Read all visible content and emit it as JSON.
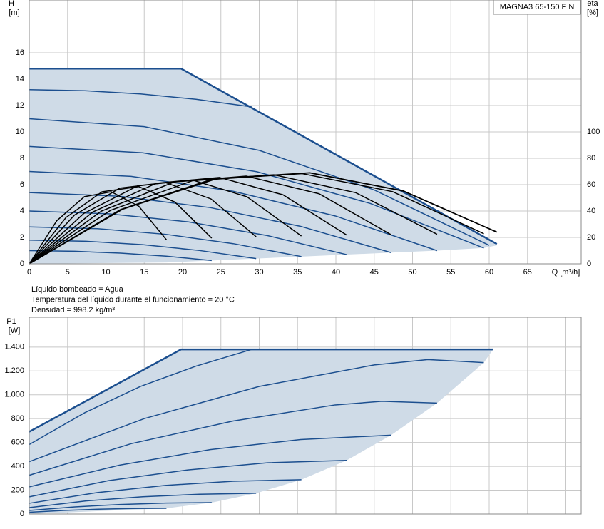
{
  "chart_data": [
    {
      "type": "line",
      "y_label": "H",
      "y_unit": "[m]",
      "y2_label": "eta",
      "y2_unit": "[%]",
      "x_label": "Q [m³/h]",
      "legend_box": "MAGNA3 65-150 F N",
      "xlim": [
        0,
        72
      ],
      "xticks": [
        0,
        5,
        10,
        15,
        20,
        25,
        30,
        35,
        40,
        45,
        50,
        55,
        60,
        65
      ],
      "ylim": [
        0,
        20
      ],
      "yticks": [
        0,
        2,
        4,
        6,
        8,
        10,
        12,
        14,
        16
      ],
      "y2lim": [
        0,
        200
      ],
      "y2ticks": [
        0,
        20,
        40,
        60,
        80,
        100
      ],
      "grid": true,
      "area": {
        "color": "#cfdbe7",
        "x": [
          0,
          19.8,
          61,
          59.3,
          53.2,
          47.2,
          41.4,
          35.5,
          29.6,
          23.8,
          17.9,
          0
        ],
        "values": [
          14.8,
          14.8,
          1.4,
          1.2,
          1.0,
          0.85,
          0.7,
          0.55,
          0.4,
          0.25,
          0.1,
          0
        ]
      },
      "series": [
        {
          "color": "#1c4f8f",
          "width": 2.5,
          "x": [
            0,
            19.8,
            61
          ],
          "values": [
            14.8,
            14.8,
            1.5
          ]
        },
        {
          "color": "#1c4f8f",
          "width": 1.5,
          "x": [
            0,
            7.25,
            14.5,
            21.75,
            29
          ],
          "values": [
            13.2,
            13.12,
            12.88,
            12.47,
            11.9
          ]
        },
        {
          "color": "#1c4f8f",
          "width": 1.5,
          "x": [
            0,
            15,
            30,
            45,
            60
          ],
          "values": [
            11,
            10.4,
            8.6,
            5.6,
            1.4
          ]
        },
        {
          "color": "#1c4f8f",
          "width": 1.5,
          "x": [
            0,
            14.8,
            29.7,
            44.5,
            59.3
          ],
          "values": [
            8.9,
            8.42,
            6.98,
            4.57,
            1.2
          ]
        },
        {
          "color": "#1c4f8f",
          "width": 1.5,
          "x": [
            0,
            13.3,
            26.6,
            39.9,
            53.2
          ],
          "values": [
            7,
            6.63,
            5.5,
            3.63,
            1.0
          ]
        },
        {
          "color": "#1c4f8f",
          "width": 1.5,
          "x": [
            0,
            11.8,
            23.6,
            35.4,
            47.2
          ],
          "values": [
            5.4,
            5.12,
            4.26,
            2.84,
            0.85
          ]
        },
        {
          "color": "#1c4f8f",
          "width": 1.5,
          "x": [
            0,
            10.35,
            20.7,
            31.05,
            41.4
          ],
          "values": [
            4,
            3.79,
            3.18,
            2.14,
            0.7
          ]
        },
        {
          "color": "#1c4f8f",
          "width": 1.5,
          "x": [
            0,
            8.9,
            17.75,
            26.6,
            35.5
          ],
          "values": [
            2.8,
            2.66,
            2.24,
            1.53,
            0.55
          ]
        },
        {
          "color": "#1c4f8f",
          "width": 1.5,
          "x": [
            0,
            7.4,
            14.8,
            22.2,
            29.6
          ],
          "values": [
            1.8,
            1.71,
            1.45,
            1.01,
            0.4
          ]
        },
        {
          "color": "#1c4f8f",
          "width": 1.5,
          "x": [
            0,
            5.95,
            11.9,
            17.85,
            23.8
          ],
          "values": [
            1,
            0.95,
            0.81,
            0.58,
            0.25
          ]
        },
        {
          "color": "#000000",
          "width": 1.5,
          "axis": "y2",
          "x": [
            0,
            3.6,
            7.2,
            10.7,
            14.3,
            17.9
          ],
          "values": [
            0,
            32.7,
            50.9,
            54.6,
            43.6,
            18.2
          ]
        },
        {
          "color": "#000000",
          "width": 1.5,
          "axis": "y2",
          "x": [
            0,
            4.8,
            9.5,
            14.3,
            19,
            23.8
          ],
          "values": [
            0,
            35.1,
            54.6,
            58.5,
            46.8,
            19.5
          ]
        },
        {
          "color": "#000000",
          "width": 1.5,
          "axis": "y2",
          "x": [
            0,
            5.9,
            11.8,
            17.8,
            23.7,
            29.6
          ],
          "values": [
            0,
            36.9,
            57.4,
            61.5,
            49.2,
            20.5
          ]
        },
        {
          "color": "#000000",
          "width": 1.5,
          "axis": "y2",
          "x": [
            0,
            7.1,
            14.2,
            21.3,
            28.4,
            35.5
          ],
          "values": [
            0,
            38.1,
            59.3,
            63.5,
            50.8,
            21.1
          ]
        },
        {
          "color": "#000000",
          "width": 1.5,
          "axis": "y2",
          "x": [
            0,
            8.3,
            16.6,
            24.8,
            33.1,
            41.4
          ],
          "values": [
            0,
            39.3,
            61.1,
            65.5,
            52.3,
            21.8
          ]
        },
        {
          "color": "#000000",
          "width": 1.5,
          "axis": "y2",
          "x": [
            0,
            9.4,
            18.9,
            28.3,
            37.8,
            47.2
          ],
          "values": [
            0,
            39.9,
            62,
            66.5,
            53.1,
            22.1
          ]
        },
        {
          "color": "#000000",
          "width": 1.5,
          "axis": "y2",
          "x": [
            0,
            10.6,
            21.3,
            31.9,
            42.6,
            53.2
          ],
          "values": [
            0,
            40.5,
            63,
            67.5,
            53.9,
            22.4
          ]
        },
        {
          "color": "#000000",
          "width": 1.5,
          "axis": "y2",
          "x": [
            0,
            11.9,
            23.7,
            35.6,
            47.4,
            59.3
          ],
          "values": [
            0,
            41.1,
            63.9,
            68.4,
            54.7,
            22.8
          ]
        },
        {
          "color": "#000000",
          "width": 1.8,
          "axis": "y2",
          "x": [
            0,
            12.2,
            24.4,
            36.6,
            48.8,
            61
          ],
          "values": [
            0,
            41.5,
            64.5,
            69,
            55.2,
            24
          ]
        }
      ]
    },
    {
      "type": "line",
      "y_label": "P1",
      "y_unit": "[W]",
      "xlim": [
        0,
        72
      ],
      "xgrid": [
        0,
        5,
        10,
        15,
        20,
        25,
        30,
        35,
        40,
        45,
        50,
        55,
        60,
        65,
        70
      ],
      "ylim": [
        0,
        1650
      ],
      "yticks": [
        0,
        200,
        400,
        600,
        800,
        {
          "value": 1000,
          "label": "1.000"
        },
        {
          "value": 1200,
          "label": "1.200"
        },
        {
          "value": 1400,
          "label": "1.400"
        }
      ],
      "grid": true,
      "area": {
        "color": "#cfdbe7",
        "x": [
          0,
          19.8,
          60.5,
          59.3,
          53.2,
          47.2,
          41.4,
          35.5,
          29.6,
          23.8,
          17.9,
          0
        ],
        "values": [
          690,
          1380,
          1380,
          1270,
          930,
          661,
          450,
          288,
          174,
          96,
          48,
          0
        ]
      },
      "series": [
        {
          "color": "#1c4f8f",
          "width": 2.5,
          "x": [
            0,
            19.8,
            60.5
          ],
          "values": [
            690,
            1380,
            1380
          ]
        },
        {
          "color": "#1c4f8f",
          "width": 1.5,
          "x": [
            0,
            7.25,
            14.5,
            21.75,
            29
          ],
          "values": [
            583,
            850,
            1070,
            1240,
            1380
          ]
        },
        {
          "color": "#1c4f8f",
          "width": 1.5,
          "x": [
            0,
            15,
            30,
            45,
            52,
            59.3
          ],
          "values": [
            439,
            800,
            1070,
            1250,
            1295,
            1270
          ]
        },
        {
          "color": "#1c4f8f",
          "width": 1.5,
          "x": [
            0,
            13.3,
            26.6,
            39.9,
            46,
            53.2
          ],
          "values": [
            325,
            590,
            780,
            915,
            945,
            930
          ]
        },
        {
          "color": "#1c4f8f",
          "width": 1.5,
          "x": [
            0,
            11.8,
            23.6,
            35.4,
            47.2
          ],
          "values": [
            228,
            410,
            540,
            625,
            661
          ]
        },
        {
          "color": "#1c4f8f",
          "width": 1.5,
          "x": [
            0,
            10.35,
            20.7,
            31.05,
            41.4
          ],
          "values": [
            144,
            280,
            370,
            430,
            450
          ]
        },
        {
          "color": "#1c4f8f",
          "width": 1.5,
          "x": [
            0,
            8.9,
            17.75,
            26.6,
            35.5
          ],
          "values": [
            90,
            180,
            240,
            275,
            288
          ]
        },
        {
          "color": "#1c4f8f",
          "width": 1.5,
          "x": [
            0,
            7.4,
            14.8,
            22.2,
            29.6
          ],
          "values": [
            54,
            110,
            145,
            166,
            174
          ]
        },
        {
          "color": "#1c4f8f",
          "width": 1.5,
          "x": [
            0,
            5.95,
            11.9,
            17.85,
            23.8
          ],
          "values": [
            30,
            60,
            80,
            92,
            96
          ]
        },
        {
          "color": "#1c4f8f",
          "width": 1.5,
          "x": [
            0,
            4.5,
            9,
            13.4,
            17.9
          ],
          "values": [
            15,
            30,
            40,
            46,
            48
          ]
        }
      ]
    }
  ],
  "notes": [
    "Líquido bombeado = Agua",
    "Temperatura del líquido durante el funcionamiento = 20 °C",
    "Densidad = 998.2 kg/m³"
  ]
}
